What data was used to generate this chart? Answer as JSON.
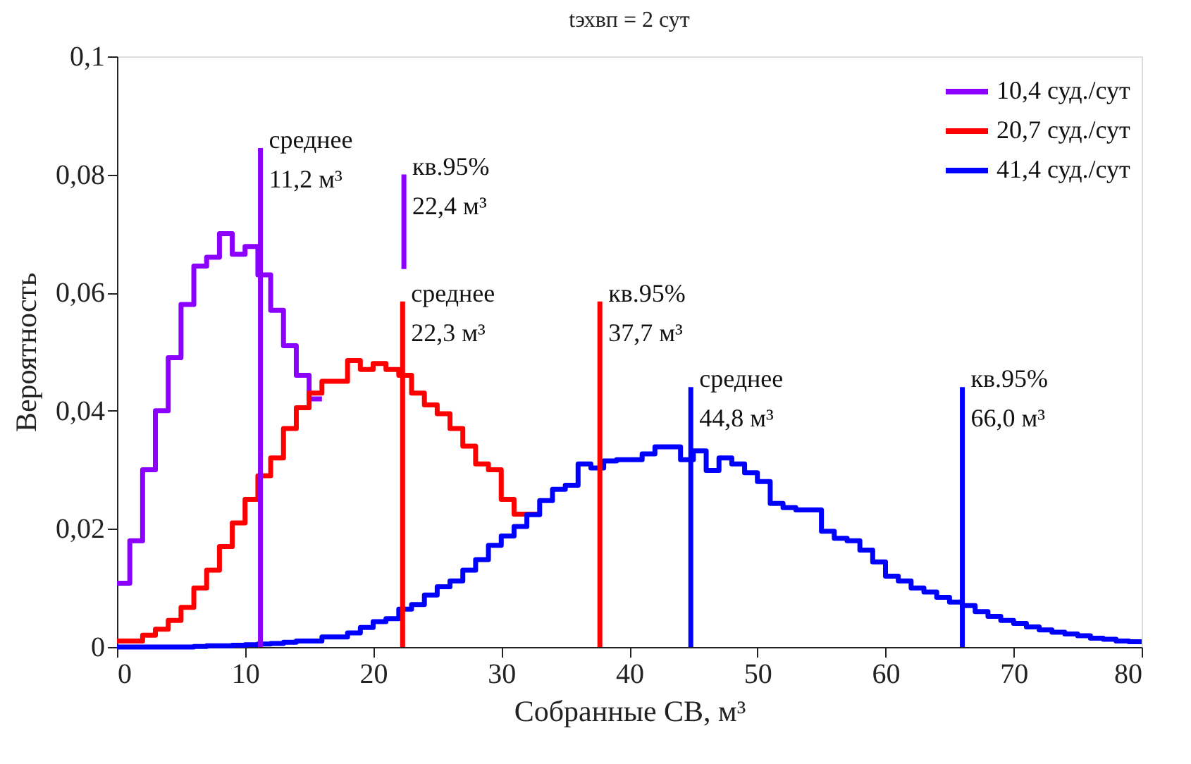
{
  "chart_data": {
    "type": "step",
    "title": "tэхвп = 2 сут",
    "xlabel": "Собранные СВ, м³",
    "ylabel": "Вероятность",
    "xlim": [
      0,
      80
    ],
    "xticks": [
      0,
      10,
      20,
      30,
      40,
      50,
      60,
      70,
      80
    ],
    "ylim": [
      0,
      0.1
    ],
    "yticks": [
      0,
      {
        "value": 0.02,
        "label": "0,02"
      },
      {
        "value": 0.04,
        "label": "0,04"
      },
      {
        "value": 0.06,
        "label": "0,06"
      },
      {
        "value": 0.08,
        "label": "0,08"
      },
      {
        "value": 0.1,
        "label": "0,1"
      }
    ],
    "grid": false,
    "legend": "top right",
    "marker": "none",
    "series": [
      {
        "name": "10,4 суд./сут",
        "color": "#8b00ff",
        "x": [
          0,
          1,
          2,
          3,
          4,
          5,
          6,
          7,
          8,
          9,
          10,
          11,
          12,
          13,
          14,
          15,
          16
        ],
        "values": [
          0.0108,
          0.018,
          0.03,
          0.04,
          0.049,
          0.058,
          0.0645,
          0.066,
          0.07,
          0.0665,
          0.0678,
          0.063,
          0.057,
          0.051,
          0.046,
          0.042,
          0.042
        ]
      },
      {
        "name": "20,7 суд./сут",
        "color": "#ff0000",
        "x": [
          0,
          1,
          2,
          3,
          4,
          5,
          6,
          7,
          8,
          9,
          10,
          11,
          12,
          13,
          14,
          15,
          16,
          17,
          18,
          19,
          20,
          21,
          22,
          23,
          24,
          25,
          26,
          27,
          28,
          29,
          30,
          31,
          32,
          33
        ],
        "values": [
          0.001,
          0.001,
          0.002,
          0.003,
          0.0045,
          0.0067,
          0.01,
          0.013,
          0.017,
          0.021,
          0.025,
          0.029,
          0.032,
          0.037,
          0.0405,
          0.043,
          0.045,
          0.045,
          0.0485,
          0.047,
          0.048,
          0.047,
          0.046,
          0.043,
          0.041,
          0.0395,
          0.037,
          0.034,
          0.031,
          0.03,
          0.025,
          0.0225,
          0.0225,
          0.0225
        ]
      },
      {
        "name": "41,4 суд./сут",
        "color": "#0000ff",
        "x": [
          0,
          1,
          2,
          3,
          4,
          5,
          6,
          7,
          8,
          9,
          10,
          11,
          12,
          13,
          14,
          15,
          16,
          17,
          18,
          19,
          20,
          21,
          22,
          23,
          24,
          25,
          26,
          27,
          28,
          29,
          30,
          31,
          32,
          33,
          34,
          35,
          36,
          37,
          38,
          39,
          40,
          41,
          42,
          43,
          44,
          45,
          46,
          47,
          48,
          49,
          50,
          51,
          52,
          53,
          54,
          55,
          56,
          57,
          58,
          59,
          60,
          61,
          62,
          63,
          64,
          65,
          66,
          67,
          68,
          69,
          70,
          71,
          72,
          73,
          74,
          75,
          76,
          77,
          78,
          79,
          80
        ],
        "values": [
          0,
          0,
          0,
          0,
          0,
          0,
          0.0001,
          0.0002,
          0.0002,
          0.0003,
          0.0004,
          0.0005,
          0.0006,
          0.0008,
          0.001,
          0.001,
          0.0017,
          0.0017,
          0.0024,
          0.0033,
          0.0043,
          0.0048,
          0.0064,
          0.0072,
          0.0088,
          0.0102,
          0.0112,
          0.013,
          0.0148,
          0.0172,
          0.0188,
          0.0204,
          0.0224,
          0.0248,
          0.0267,
          0.0274,
          0.031,
          0.0303,
          0.0315,
          0.0317,
          0.0317,
          0.0327,
          0.0339,
          0.0339,
          0.0317,
          0.0332,
          0.0299,
          0.032,
          0.031,
          0.0295,
          0.028,
          0.0243,
          0.0236,
          0.0232,
          0.0232,
          0.0196,
          0.0184,
          0.018,
          0.0164,
          0.0144,
          0.012,
          0.0112,
          0.01,
          0.0093,
          0.0084,
          0.0076,
          0.007,
          0.006,
          0.0052,
          0.0045,
          0.004,
          0.0034,
          0.0029,
          0.0025,
          0.0022,
          0.0019,
          0.0015,
          0.0013,
          0.001,
          0.0009,
          0.0009
        ]
      },
      {
        "type": "line",
        "color": "#8b00ff",
        "x": [
          11.2,
          11.2
        ],
        "values": [
          0,
          0.0845
        ]
      },
      {
        "type": "line",
        "color": "#8b00ff",
        "x": [
          22.4,
          22.4
        ],
        "values": [
          0.064,
          0.08
        ]
      },
      {
        "type": "line",
        "color": "#ff0000",
        "x": [
          22.3,
          22.3
        ],
        "values": [
          0,
          0.0585
        ]
      },
      {
        "type": "line",
        "color": "#ff0000",
        "x": [
          37.7,
          37.7
        ],
        "values": [
          0,
          0.0585
        ]
      },
      {
        "type": "line",
        "color": "#0000ff",
        "x": [
          44.8,
          44.8
        ],
        "values": [
          0,
          0.044
        ]
      },
      {
        "type": "line",
        "color": "#0000ff",
        "x": [
          66.0,
          66.0
        ],
        "values": [
          0,
          0.044
        ]
      }
    ],
    "annotations": [
      {
        "text": "среднее\n11,2 м³",
        "x": 11.2,
        "y": 0.0845
      },
      {
        "text": "кв.95%\n22,4 м³",
        "x": 22.4,
        "y": 0.08
      },
      {
        "text": "среднее\n22,3 м³",
        "x": 22.3,
        "y": 0.0585
      },
      {
        "text": "кв.95%\n37,7 м³",
        "x": 37.7,
        "y": 0.0585
      },
      {
        "text": "среднее\n44,8 м³",
        "x": 44.8,
        "y": 0.044
      },
      {
        "text": "кв.95%\n66,0 м³",
        "x": 66.0,
        "y": 0.044
      }
    ]
  }
}
